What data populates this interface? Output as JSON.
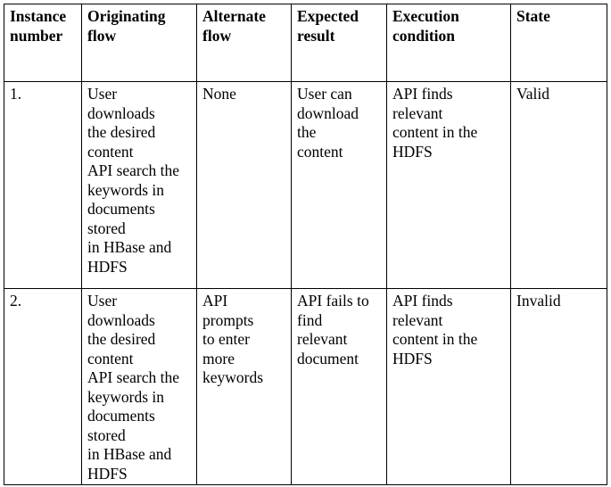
{
  "table": {
    "headers": [
      [
        "Instance",
        "number"
      ],
      [
        "Originating",
        "flow"
      ],
      [
        "Alternate",
        "flow"
      ],
      [
        "Expected",
        "result"
      ],
      [
        "Execution",
        "condition"
      ],
      [
        "State"
      ]
    ],
    "rows": [
      {
        "instance_number": "1.",
        "originating_flow": [
          "User",
          "downloads",
          "the desired",
          "content",
          "API search the",
          "keywords in",
          "documents",
          "stored",
          "in HBase and",
          "HDFS"
        ],
        "alternate_flow": [
          "None"
        ],
        "expected_result": [
          "User can",
          "download",
          "the",
          "content"
        ],
        "execution_condition": [
          "API finds",
          "relevant",
          "content in the",
          "HDFS"
        ],
        "state": "Valid"
      },
      {
        "instance_number": "2.",
        "originating_flow": [
          "User",
          "downloads",
          "the desired",
          "content",
          "API search the",
          "keywords in",
          "documents",
          "stored",
          "in HBase and",
          "HDFS"
        ],
        "alternate_flow": [
          "API",
          "prompts",
          "to enter",
          "more",
          "keywords"
        ],
        "expected_result": [
          "API fails to",
          "find",
          "relevant",
          "document"
        ],
        "execution_condition": [
          "API finds",
          "relevant",
          "content in the",
          "HDFS"
        ],
        "state": "Invalid"
      }
    ]
  }
}
